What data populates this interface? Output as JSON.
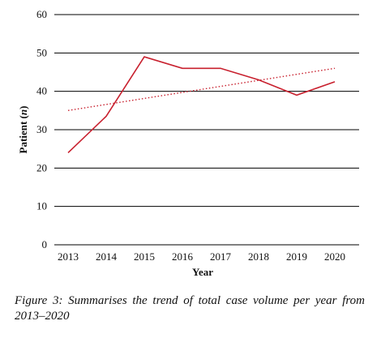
{
  "chart_data": {
    "type": "line",
    "xlabel": "Year",
    "ylabel_main": "Patient (",
    "ylabel_italic": "n",
    "ylabel_end": ")",
    "ylim": [
      0,
      60
    ],
    "yticks": [
      "0",
      "10",
      "20",
      "30",
      "40",
      "50",
      "60"
    ],
    "categories": [
      "2013",
      "2014",
      "2015",
      "2016",
      "2017",
      "2018",
      "2019",
      "2020"
    ],
    "series": [
      {
        "values": [
          24,
          33.5,
          49,
          46,
          46,
          43,
          39,
          42.5
        ],
        "color": "#c8202e",
        "style": "solid"
      }
    ],
    "trendline": {
      "style": "dotted",
      "color": "#c8202e",
      "start": 35,
      "end": 46
    },
    "grid": true
  },
  "caption": "Figure 3: Summarises the trend of total case volume per year from 2013–2020"
}
